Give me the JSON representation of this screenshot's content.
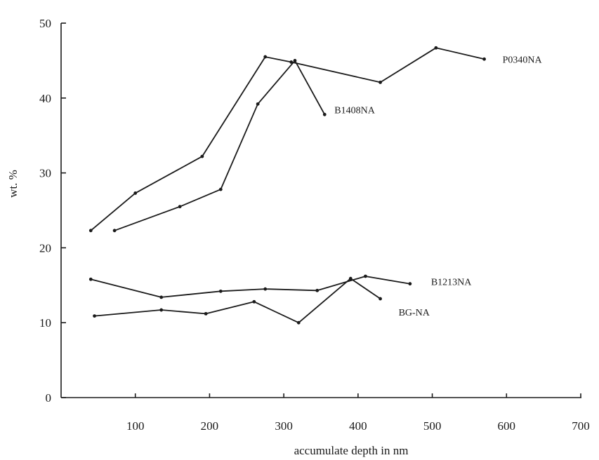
{
  "chart_data": {
    "type": "line",
    "title": "",
    "xlabel": "accumulate depth in nm",
    "ylabel": "wt. %",
    "xlim": [
      0,
      700
    ],
    "ylim": [
      0,
      50
    ],
    "x_ticks": [
      100,
      200,
      300,
      400,
      500,
      600,
      700
    ],
    "y_ticks": [
      0,
      10,
      20,
      30,
      40,
      50
    ],
    "grid": false,
    "legend": "none",
    "series": [
      {
        "name": "P0340NA",
        "x": [
          40,
          100,
          190,
          275,
          310,
          430,
          505,
          570
        ],
        "y": [
          22.3,
          27.3,
          32.2,
          45.5,
          44.8,
          42.1,
          46.7,
          45.2
        ]
      },
      {
        "name": "B1408NA",
        "x": [
          72,
          160,
          215,
          265,
          315,
          355
        ],
        "y": [
          22.3,
          25.5,
          27.8,
          39.2,
          45.0,
          37.8
        ]
      },
      {
        "name": "B1213NA",
        "x": [
          40,
          135,
          215,
          275,
          345,
          410,
          470
        ],
        "y": [
          15.8,
          13.4,
          14.2,
          14.5,
          14.3,
          16.2,
          15.2
        ]
      },
      {
        "name": "BG-NA",
        "x": [
          45,
          135,
          195,
          260,
          320,
          390,
          430
        ],
        "y": [
          10.9,
          11.7,
          11.2,
          12.8,
          10.0,
          15.9,
          13.2
        ]
      }
    ]
  }
}
